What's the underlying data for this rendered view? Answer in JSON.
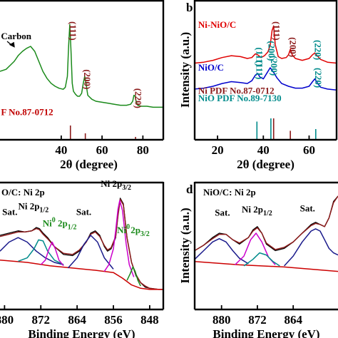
{
  "chart_data": [
    {
      "id": "a",
      "type": "line",
      "panel_letter": "",
      "xlabel": "2θ (degree)",
      "ylabel": "",
      "xlim": [
        10,
        90
      ],
      "xticks": [
        40,
        60,
        80
      ],
      "grid": false,
      "series": [
        {
          "color": "#1a8a1a",
          "x": [
            10,
            13,
            15,
            17,
            19,
            21,
            23,
            25,
            27,
            29,
            31,
            33,
            35,
            37,
            39,
            41,
            42,
            43,
            43.6,
            44.2,
            44.8,
            45.4,
            46,
            47,
            48,
            49,
            50,
            50.8,
            51.5,
            52.2,
            53,
            55,
            57,
            60,
            63,
            66,
            69,
            72,
            74,
            75,
            75.6,
            76.2,
            76.8,
            77.5,
            79,
            82,
            85,
            88,
            90
          ],
          "y": [
            0.5,
            0.52,
            0.56,
            0.6,
            0.66,
            0.7,
            0.73,
            0.75,
            0.7,
            0.6,
            0.5,
            0.43,
            0.38,
            0.35,
            0.33,
            0.32,
            0.34,
            0.45,
            0.75,
            0.97,
            0.7,
            0.38,
            0.3,
            0.27,
            0.25,
            0.25,
            0.28,
            0.38,
            0.45,
            0.37,
            0.26,
            0.22,
            0.2,
            0.19,
            0.18,
            0.17,
            0.16,
            0.16,
            0.17,
            0.2,
            0.26,
            0.25,
            0.19,
            0.16,
            0.15,
            0.15,
            0.14,
            0.14,
            0.14
          ]
        }
      ],
      "reference_lines": {
        "color": "#8b1a1a",
        "x": [
          44.5,
          51.8,
          76.4
        ],
        "heights": [
          1.0,
          0.45,
          0.2
        ]
      },
      "annotations": [
        {
          "text": "Carbon",
          "x": 10.5,
          "y": 0.82,
          "color": "#000000"
        },
        {
          "text": "(111)",
          "x": 44.3,
          "y": 1.0,
          "color": "#8b1a1a",
          "rotate": true
        },
        {
          "text": "(200)",
          "x": 51.3,
          "y": 0.52,
          "color": "#8b1a1a",
          "rotate": true
        },
        {
          "text": "(220)",
          "x": 76.2,
          "y": 0.33,
          "color": "#8b1a1a",
          "rotate": true
        },
        {
          "text": "F No.87-0712",
          "x": 10.5,
          "y": 0.06,
          "color": "#c00000"
        }
      ]
    },
    {
      "id": "b",
      "type": "line",
      "panel_letter": "b",
      "xlabel": "2θ (degree)",
      "ylabel": "Intensity (a.u.)",
      "xlim": [
        10,
        72
      ],
      "xticks": [
        20,
        40,
        60
      ],
      "grid": false,
      "series": [
        {
          "name": "Ni-NiO/C",
          "color": "#e00000",
          "x": [
            10,
            14,
            18,
            22,
            26,
            30,
            33,
            35,
            36.5,
            37.5,
            39,
            40.5,
            42,
            43,
            43.8,
            44.5,
            45.2,
            46.5,
            48,
            50,
            51,
            51.8,
            52.6,
            54,
            57,
            60,
            61.5,
            62.5,
            63.5,
            65,
            68,
            72
          ],
          "y": [
            0.55,
            0.56,
            0.58,
            0.61,
            0.63,
            0.62,
            0.6,
            0.61,
            0.65,
            0.64,
            0.61,
            0.63,
            0.67,
            0.74,
            0.9,
            0.95,
            0.75,
            0.62,
            0.6,
            0.61,
            0.64,
            0.7,
            0.64,
            0.6,
            0.58,
            0.6,
            0.64,
            0.66,
            0.63,
            0.59,
            0.56,
            0.55
          ]
        },
        {
          "name": "NiO/C",
          "color": "#0000cc",
          "x": [
            10,
            14,
            18,
            22,
            26,
            30,
            33,
            35,
            36.5,
            37.5,
            38.5,
            40,
            41.5,
            43,
            44.5,
            46,
            48,
            51,
            54,
            57,
            60,
            61.5,
            62.5,
            63.5,
            65,
            68,
            72
          ],
          "y": [
            0.27,
            0.28,
            0.3,
            0.33,
            0.35,
            0.34,
            0.33,
            0.36,
            0.42,
            0.44,
            0.4,
            0.38,
            0.44,
            0.5,
            0.45,
            0.39,
            0.33,
            0.3,
            0.28,
            0.28,
            0.3,
            0.35,
            0.38,
            0.34,
            0.29,
            0.27,
            0.26
          ]
        }
      ],
      "reference_lines": [
        {
          "color": "#008b8b",
          "x": [
            37.2,
            43.3,
            62.9
          ],
          "heights": [
            0.85,
            1.0,
            0.5
          ]
        },
        {
          "color": "#8b1a1a",
          "x": [
            44.5,
            51.8
          ],
          "heights": [
            1.0,
            0.42
          ]
        }
      ],
      "annotations": [
        {
          "text": "Ni-NiO/C",
          "x": 11.5,
          "y": 0.93,
          "color": "#e00000"
        },
        {
          "text": "NiO/C",
          "x": 11.5,
          "y": 0.47,
          "color": "#0000cc"
        },
        {
          "text": "Ni PDF No.87-0712",
          "x": 11.5,
          "y": 0.22,
          "color": "#8b1a1a"
        },
        {
          "text": "NiO PDF No.89-7130",
          "x": 11.5,
          "y": 0.14,
          "color": "#008b8b"
        },
        {
          "text": "(111)",
          "x": 37.0,
          "y": 0.72,
          "color": "#008b8b",
          "rotate": true
        },
        {
          "text": "(200)",
          "x": 42.2,
          "y": 0.79,
          "color": "#008b8b",
          "rotate": true
        },
        {
          "text": "(111)",
          "x": 44.5,
          "y": 1.0,
          "color": "#8b1a1a",
          "rotate": true
        },
        {
          "text": "(200)",
          "x": 51.6,
          "y": 0.83,
          "color": "#8b1a1a",
          "rotate": true
        },
        {
          "text": "(220)",
          "x": 62.5,
          "y": 0.8,
          "color": "#008b8b",
          "rotate": true
        },
        {
          "text": "(111)",
          "x": 37.0,
          "y": 0.58,
          "color": "#008b8b",
          "rotate": true
        },
        {
          "text": "(200)",
          "x": 43.3,
          "y": 0.63,
          "color": "#008b8b",
          "rotate": true
        },
        {
          "text": "(220)",
          "x": 62.6,
          "y": 0.5,
          "color": "#008b8b",
          "rotate": true
        }
      ]
    },
    {
      "id": "c",
      "type": "line",
      "panel_letter": "",
      "title": "O/C: Ni 2p",
      "xlabel": "Binding Energy (eV)",
      "ylabel": "",
      "xlim": [
        881,
        845
      ],
      "xticks": [
        880,
        872,
        864,
        856,
        848
      ],
      "grid": false,
      "series": [
        {
          "name": "raw",
          "color": "#000000",
          "x": [
            881,
            879,
            877,
            875.5,
            874,
            873,
            872.3,
            871.5,
            870.5,
            869,
            867,
            865,
            863.5,
            862,
            861,
            860,
            859,
            858,
            857.3,
            856.5,
            855.5,
            855,
            854.5,
            853.8,
            853,
            852,
            851,
            850,
            849,
            848,
            846,
            845
          ],
          "y": [
            0.62,
            0.64,
            0.66,
            0.65,
            0.66,
            0.69,
            0.68,
            0.64,
            0.6,
            0.52,
            0.45,
            0.44,
            0.48,
            0.56,
            0.64,
            0.66,
            0.62,
            0.52,
            0.48,
            0.5,
            0.6,
            0.8,
            0.95,
            0.9,
            0.6,
            0.38,
            0.26,
            0.2,
            0.16,
            0.15,
            0.14,
            0.14
          ]
        },
        {
          "name": "fit-envelope",
          "color": "#8b1a1a",
          "x": [
            881,
            879,
            877,
            875.5,
            874,
            873,
            872.3,
            871.5,
            870.5,
            869,
            867,
            865,
            863.5,
            862,
            861,
            860,
            859,
            858,
            857.3,
            856.5,
            855.5,
            855,
            854.5,
            853.8,
            853,
            852,
            851,
            850,
            849,
            848,
            846,
            845
          ],
          "y": [
            0.61,
            0.63,
            0.65,
            0.65,
            0.66,
            0.68,
            0.67,
            0.63,
            0.59,
            0.52,
            0.46,
            0.45,
            0.49,
            0.56,
            0.63,
            0.65,
            0.61,
            0.53,
            0.49,
            0.51,
            0.61,
            0.79,
            0.94,
            0.89,
            0.6,
            0.38,
            0.27,
            0.2,
            0.17,
            0.15,
            0.14,
            0.14
          ]
        },
        {
          "name": "background",
          "color": "#cc0000",
          "x": [
            881,
            875,
            870,
            865,
            860,
            856,
            854,
            852,
            850,
            848,
            845
          ],
          "y": [
            0.4,
            0.38,
            0.35,
            0.33,
            0.31,
            0.29,
            0.24,
            0.18,
            0.15,
            0.14,
            0.14
          ]
        },
        {
          "name": "sat-1",
          "color": "#1a1a8b",
          "x": [
            881,
            879,
            877,
            875,
            873,
            871,
            869,
            867
          ],
          "y": [
            0.48,
            0.56,
            0.6,
            0.56,
            0.48,
            0.42,
            0.38,
            0.36
          ]
        },
        {
          "name": "ni2p12",
          "color": "#008b8b",
          "x": [
            877,
            875,
            873.5,
            872.5,
            871.5,
            870.5,
            869,
            867
          ],
          "y": [
            0.39,
            0.42,
            0.5,
            0.58,
            0.57,
            0.48,
            0.4,
            0.36
          ]
        },
        {
          "name": "ni0-2p12",
          "color": "#cc00cc",
          "x": [
            872,
            871,
            870.2,
            869.5,
            868.8,
            868,
            867
          ],
          "y": [
            0.36,
            0.4,
            0.5,
            0.56,
            0.5,
            0.4,
            0.35
          ]
        },
        {
          "name": "sat-2",
          "color": "#1a1a8b",
          "x": [
            866,
            864,
            862.5,
            861,
            859.5,
            858,
            856
          ],
          "y": [
            0.33,
            0.42,
            0.54,
            0.62,
            0.56,
            0.42,
            0.32
          ]
        },
        {
          "name": "ni2p32",
          "color": "#cc00cc",
          "x": [
            858,
            857,
            856,
            855.5,
            855,
            854.6,
            854,
            853.2,
            852.5,
            851.5
          ],
          "y": [
            0.3,
            0.36,
            0.5,
            0.66,
            0.85,
            0.93,
            0.84,
            0.55,
            0.36,
            0.25
          ]
        },
        {
          "name": "ni0-2p32",
          "color": "#1a8a1a",
          "x": [
            853,
            852.3,
            851.7,
            851.2,
            850.6,
            850
          ],
          "y": [
            0.22,
            0.28,
            0.34,
            0.3,
            0.22,
            0.17
          ]
        }
      ],
      "annotations": [
        {
          "text": "Sat.",
          "x": 880.5,
          "y": 0.8,
          "color": "#000000"
        },
        {
          "text": "Ni 2p",
          "sub": "1/2",
          "x": 877,
          "y": 0.85,
          "color": "#000000"
        },
        {
          "text": "Ni",
          "sup": "0",
          "tail": " 2p",
          "sub": "1/2",
          "x": 871.6,
          "y": 0.7,
          "color": "#1a8a1a"
        },
        {
          "text": "Sat.",
          "x": 864.2,
          "y": 0.8,
          "color": "#000000"
        },
        {
          "text": "Ni 2p",
          "sub": "3/2",
          "x": 858.8,
          "y": 1.05,
          "color": "#000000"
        },
        {
          "text": "Ni",
          "sup": "0",
          "x": 855.2,
          "y": 0.64,
          "color": "#1a8a1a"
        },
        {
          "text": "2p",
          "sub": "3/2",
          "x": 852.2,
          "y": 0.64,
          "color": "#1a8a1a"
        }
      ]
    },
    {
      "id": "d",
      "type": "line",
      "panel_letter": "d",
      "title": "NiO/C: Ni 2p",
      "xlabel": "Binding Energy (eV)",
      "ylabel": "Intensity (a.u.)",
      "xlim": [
        886,
        854
      ],
      "xticks": [
        880,
        872,
        864
      ],
      "grid": false,
      "series": [
        {
          "name": "raw",
          "color": "#000000",
          "x": [
            886,
            884,
            882,
            880.5,
            879,
            877.5,
            876,
            874,
            873,
            872,
            871,
            870,
            868,
            866,
            864,
            862,
            860,
            859,
            858,
            857,
            856,
            855,
            854
          ],
          "y": [
            0.5,
            0.55,
            0.62,
            0.66,
            0.65,
            0.6,
            0.56,
            0.62,
            0.69,
            0.72,
            0.66,
            0.56,
            0.5,
            0.52,
            0.58,
            0.66,
            0.74,
            0.76,
            0.74,
            0.72,
            0.8,
            0.95,
            1.0
          ]
        },
        {
          "name": "fit-envelope",
          "color": "#8b1a1a",
          "x": [
            886,
            884,
            882,
            880.5,
            879,
            877.5,
            876,
            874,
            873,
            872,
            871,
            870,
            868,
            866,
            864,
            862,
            860,
            859,
            858,
            857,
            856,
            855,
            854
          ],
          "y": [
            0.5,
            0.55,
            0.61,
            0.65,
            0.65,
            0.6,
            0.57,
            0.62,
            0.68,
            0.71,
            0.66,
            0.57,
            0.51,
            0.53,
            0.58,
            0.66,
            0.73,
            0.75,
            0.74,
            0.72,
            0.8,
            0.94,
            1.0
          ]
        },
        {
          "name": "background",
          "color": "#cc0000",
          "x": [
            886,
            876,
            866,
            860,
            854
          ],
          "y": [
            0.4,
            0.37,
            0.35,
            0.33,
            0.31
          ]
        },
        {
          "name": "sat-1",
          "color": "#1a1a8b",
          "x": [
            886,
            884,
            882,
            880.5,
            879,
            877.5,
            876,
            874
          ],
          "y": [
            0.42,
            0.5,
            0.58,
            0.61,
            0.58,
            0.5,
            0.43,
            0.38
          ]
        },
        {
          "name": "ni2p12",
          "color": "#cc00cc",
          "x": [
            877,
            875,
            873.5,
            872.3,
            871,
            869.5,
            868
          ],
          "y": [
            0.37,
            0.45,
            0.6,
            0.66,
            0.58,
            0.44,
            0.37
          ]
        },
        {
          "name": "ni2p12-b",
          "color": "#008b8b",
          "x": [
            875,
            873,
            871.5,
            870,
            868.5,
            867
          ],
          "y": [
            0.36,
            0.42,
            0.48,
            0.46,
            0.4,
            0.36
          ]
        },
        {
          "name": "sat-2",
          "color": "#1a1a8b",
          "x": [
            866,
            864,
            862,
            860,
            859,
            858,
            857,
            856,
            855,
            854
          ],
          "y": [
            0.36,
            0.45,
            0.58,
            0.68,
            0.7,
            0.68,
            0.6,
            0.52,
            0.48,
            0.46
          ]
        }
      ],
      "annotations": [
        {
          "text": "Sat.",
          "x": 881.5,
          "y": 0.82,
          "color": "#000000"
        },
        {
          "text": "Ni 2p",
          "sub": "1/2",
          "x": 875.5,
          "y": 0.85,
          "color": "#000000"
        },
        {
          "text": "Sat.",
          "x": 862.5,
          "y": 0.86,
          "color": "#000000"
        }
      ]
    }
  ]
}
